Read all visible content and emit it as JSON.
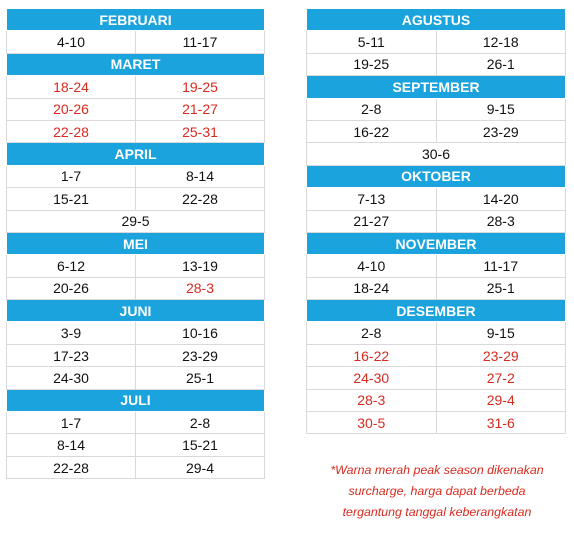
{
  "colors": {
    "header_bg": "#1aa3dc",
    "header_text": "#ffffff",
    "peak_text": "#d82b20",
    "normal_text": "#111111"
  },
  "left_months": [
    {
      "name": "FEBRUARI",
      "rows": [
        {
          "cells": [
            {
              "text": "4-10",
              "peak": false
            },
            {
              "text": "11-17",
              "peak": false
            }
          ]
        }
      ]
    },
    {
      "name": "MARET",
      "rows": [
        {
          "cells": [
            {
              "text": "18-24",
              "peak": true
            },
            {
              "text": "19-25",
              "peak": true
            }
          ]
        },
        {
          "cells": [
            {
              "text": "20-26",
              "peak": true
            },
            {
              "text": "21-27",
              "peak": true
            }
          ]
        },
        {
          "cells": [
            {
              "text": "22-28",
              "peak": true
            },
            {
              "text": "25-31",
              "peak": true
            }
          ]
        }
      ]
    },
    {
      "name": "APRIL",
      "rows": [
        {
          "cells": [
            {
              "text": "1-7",
              "peak": false
            },
            {
              "text": "8-14",
              "peak": false
            }
          ]
        },
        {
          "cells": [
            {
              "text": "15-21",
              "peak": false
            },
            {
              "text": "22-28",
              "peak": false
            }
          ]
        },
        {
          "cells": [
            {
              "text": "29-5",
              "peak": false
            }
          ]
        }
      ]
    },
    {
      "name": "MEI",
      "rows": [
        {
          "cells": [
            {
              "text": "6-12",
              "peak": false
            },
            {
              "text": "13-19",
              "peak": false
            }
          ]
        },
        {
          "cells": [
            {
              "text": "20-26",
              "peak": false
            },
            {
              "text": "28-3",
              "peak": true
            }
          ]
        }
      ]
    },
    {
      "name": "JUNI",
      "rows": [
        {
          "cells": [
            {
              "text": "3-9",
              "peak": false
            },
            {
              "text": "10-16",
              "peak": false
            }
          ]
        },
        {
          "cells": [
            {
              "text": "17-23",
              "peak": false
            },
            {
              "text": "23-29",
              "peak": false
            }
          ]
        },
        {
          "cells": [
            {
              "text": "24-30",
              "peak": false
            },
            {
              "text": "25-1",
              "peak": false
            }
          ]
        }
      ]
    },
    {
      "name": "JULI",
      "rows": [
        {
          "cells": [
            {
              "text": "1-7",
              "peak": false
            },
            {
              "text": "2-8",
              "peak": false
            }
          ]
        },
        {
          "cells": [
            {
              "text": "8-14",
              "peak": false
            },
            {
              "text": "15-21",
              "peak": false
            }
          ]
        },
        {
          "cells": [
            {
              "text": "22-28",
              "peak": false
            },
            {
              "text": "29-4",
              "peak": false
            }
          ]
        }
      ]
    }
  ],
  "right_months": [
    {
      "name": "AGUSTUS",
      "rows": [
        {
          "cells": [
            {
              "text": "5-11",
              "peak": false
            },
            {
              "text": "12-18",
              "peak": false
            }
          ]
        },
        {
          "cells": [
            {
              "text": "19-25",
              "peak": false
            },
            {
              "text": "26-1",
              "peak": false
            }
          ]
        }
      ]
    },
    {
      "name": "SEPTEMBER",
      "rows": [
        {
          "cells": [
            {
              "text": "2-8",
              "peak": false
            },
            {
              "text": "9-15",
              "peak": false
            }
          ]
        },
        {
          "cells": [
            {
              "text": "16-22",
              "peak": false
            },
            {
              "text": "23-29",
              "peak": false
            }
          ]
        },
        {
          "cells": [
            {
              "text": "30-6",
              "peak": false
            }
          ]
        }
      ]
    },
    {
      "name": "OKTOBER",
      "rows": [
        {
          "cells": [
            {
              "text": "7-13",
              "peak": false
            },
            {
              "text": "14-20",
              "peak": false
            }
          ]
        },
        {
          "cells": [
            {
              "text": "21-27",
              "peak": false
            },
            {
              "text": "28-3",
              "peak": false
            }
          ]
        }
      ]
    },
    {
      "name": "NOVEMBER",
      "rows": [
        {
          "cells": [
            {
              "text": "4-10",
              "peak": false
            },
            {
              "text": "11-17",
              "peak": false
            }
          ]
        },
        {
          "cells": [
            {
              "text": "18-24",
              "peak": false
            },
            {
              "text": "25-1",
              "peak": false
            }
          ]
        }
      ]
    },
    {
      "name": "DESEMBER",
      "rows": [
        {
          "cells": [
            {
              "text": "2-8",
              "peak": false
            },
            {
              "text": "9-15",
              "peak": false
            }
          ]
        },
        {
          "cells": [
            {
              "text": "16-22",
              "peak": true
            },
            {
              "text": "23-29",
              "peak": true
            }
          ]
        },
        {
          "cells": [
            {
              "text": "24-30",
              "peak": true
            },
            {
              "text": "27-2",
              "peak": true
            }
          ]
        },
        {
          "cells": [
            {
              "text": "28-3",
              "peak": true
            },
            {
              "text": "29-4",
              "peak": true
            }
          ]
        },
        {
          "cells": [
            {
              "text": "30-5",
              "peak": true
            },
            {
              "text": "31-6",
              "peak": true
            }
          ]
        }
      ]
    }
  ],
  "note": {
    "lines": [
      "*Warna merah peak season dikenakan",
      "surcharge, harga dapat berbeda",
      "tergantung tanggal keberangkatan"
    ]
  }
}
